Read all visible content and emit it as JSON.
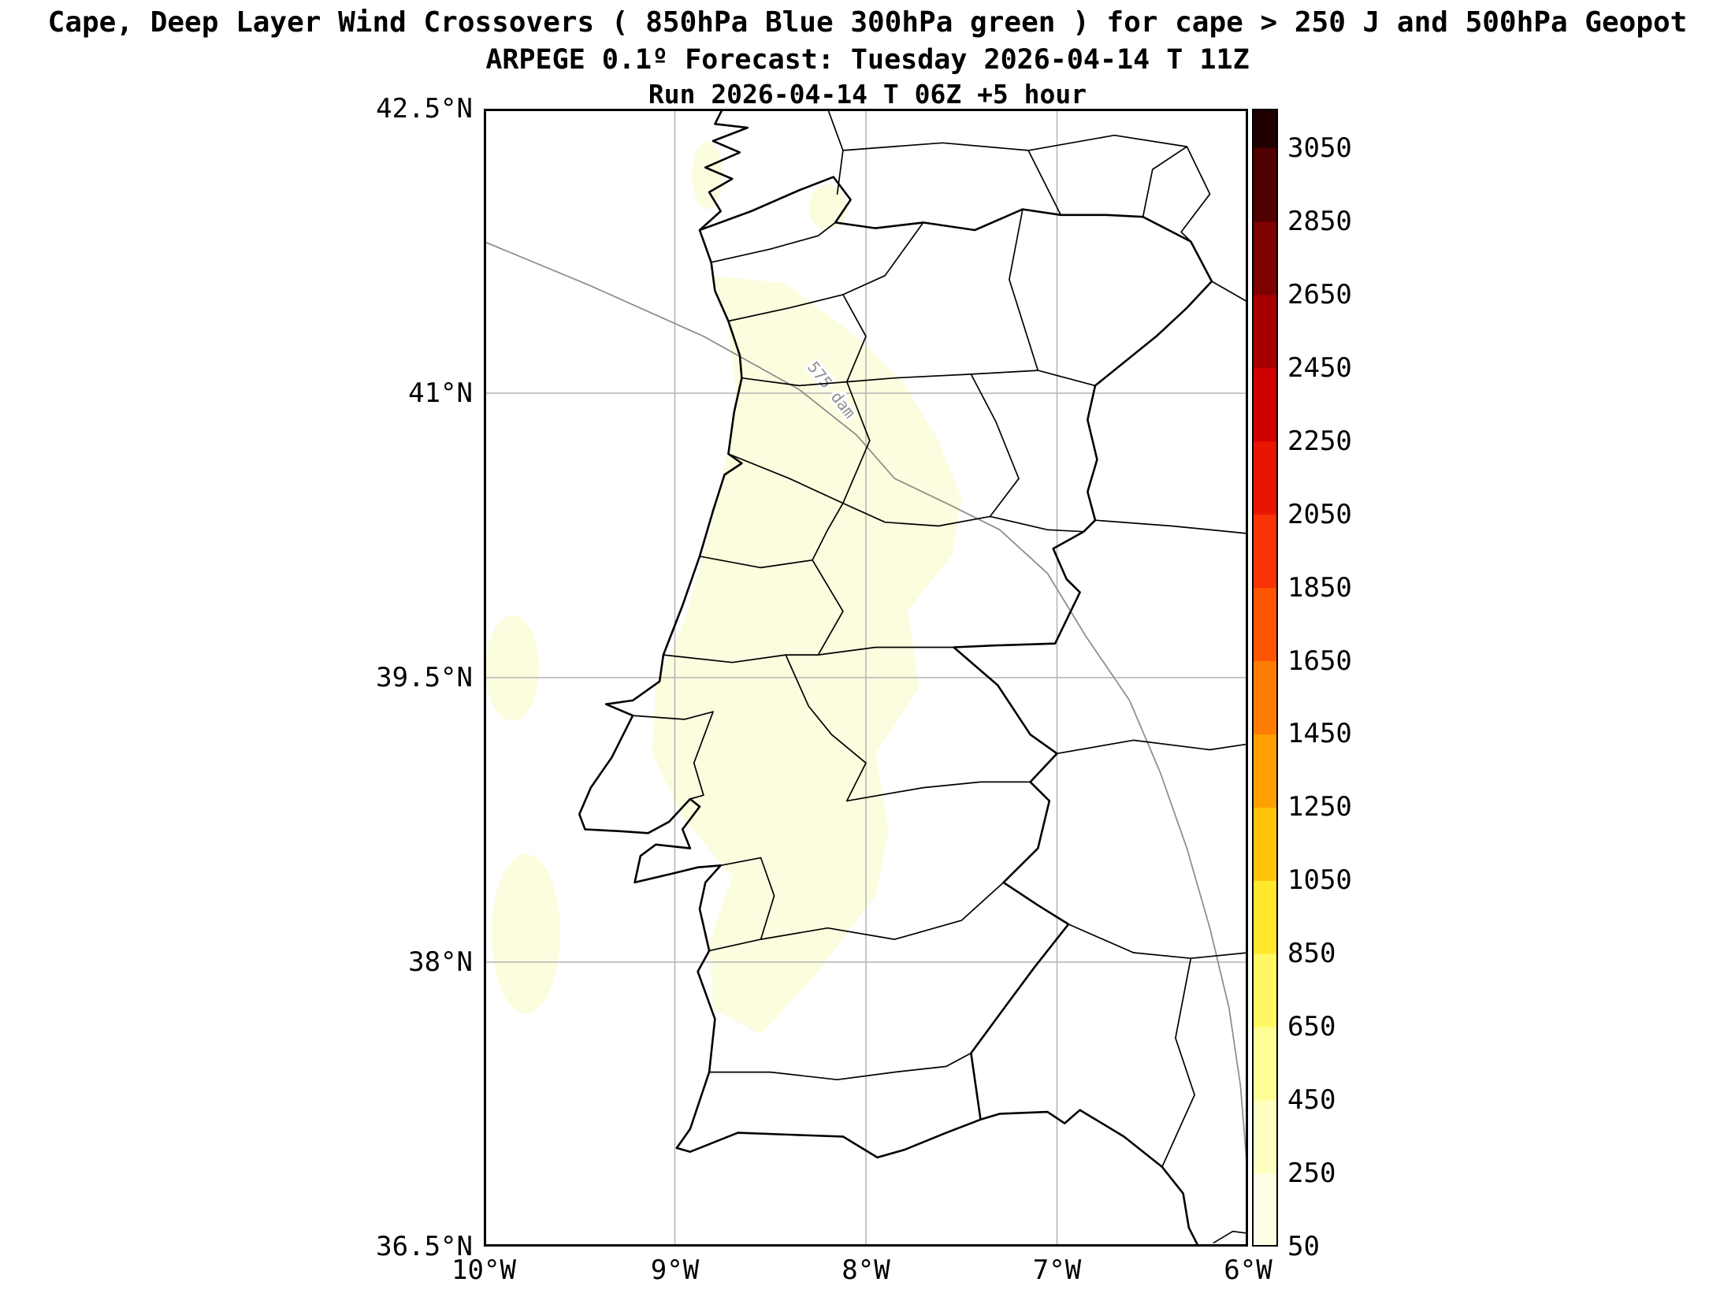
{
  "titles": {
    "line1": "Cape, Deep Layer Wind Crossovers ( 850hPa Blue 300hPa green ) for cape > 250 J and 500hPa Geopot",
    "line2": "ARPEGE 0.1º Forecast: Tuesday 2026-04-14 T 11Z",
    "line3": "Run 2026-04-14 T 06Z +5 hour"
  },
  "axes": {
    "lat_range": [
      36.5,
      42.5
    ],
    "lon_range": [
      -10,
      -6
    ],
    "lat_ticks": [
      {
        "label": "42.5°N",
        "value": 42.5
      },
      {
        "label": "41°N",
        "value": 41
      },
      {
        "label": "39.5°N",
        "value": 39.5
      },
      {
        "label": "38°N",
        "value": 38
      },
      {
        "label": "36.5°N",
        "value": 36.5
      }
    ],
    "lon_ticks": [
      {
        "label": "10°W",
        "value": -10
      },
      {
        "label": "9°W",
        "value": -9
      },
      {
        "label": "8°W",
        "value": -8
      },
      {
        "label": "7°W",
        "value": -7
      },
      {
        "label": "6°W",
        "value": -6
      }
    ]
  },
  "contour": {
    "label": "575 dam",
    "color": "#8f8f8f"
  },
  "cape_shading": {
    "fill_color": "#FCFCDF"
  },
  "map_colors": {
    "grid": "#b3b3b3",
    "coast": "#000000",
    "boundary": "#000000",
    "frame": "#000000",
    "sea": "#ffffff"
  },
  "colorbar": {
    "tick_labels": [
      "50",
      "250",
      "450",
      "650",
      "850",
      "1050",
      "1250",
      "1450",
      "1650",
      "1850",
      "2050",
      "2250",
      "2450",
      "2650",
      "2850",
      "3050"
    ],
    "tick_values": [
      50,
      250,
      450,
      650,
      850,
      1050,
      1250,
      1450,
      1650,
      1850,
      2050,
      2250,
      2450,
      2650,
      2850,
      3050
    ],
    "segment_colors_bottom_to_top": [
      "#FFFFE5",
      "#FFFFC2",
      "#FFFD96",
      "#FFF763",
      "#FFE82E",
      "#FFC40A",
      "#FFA000",
      "#FF7D00",
      "#FF5500",
      "#F93306",
      "#E81600",
      "#CE0000",
      "#A80000",
      "#7E0000",
      "#500000",
      "#200000"
    ]
  }
}
